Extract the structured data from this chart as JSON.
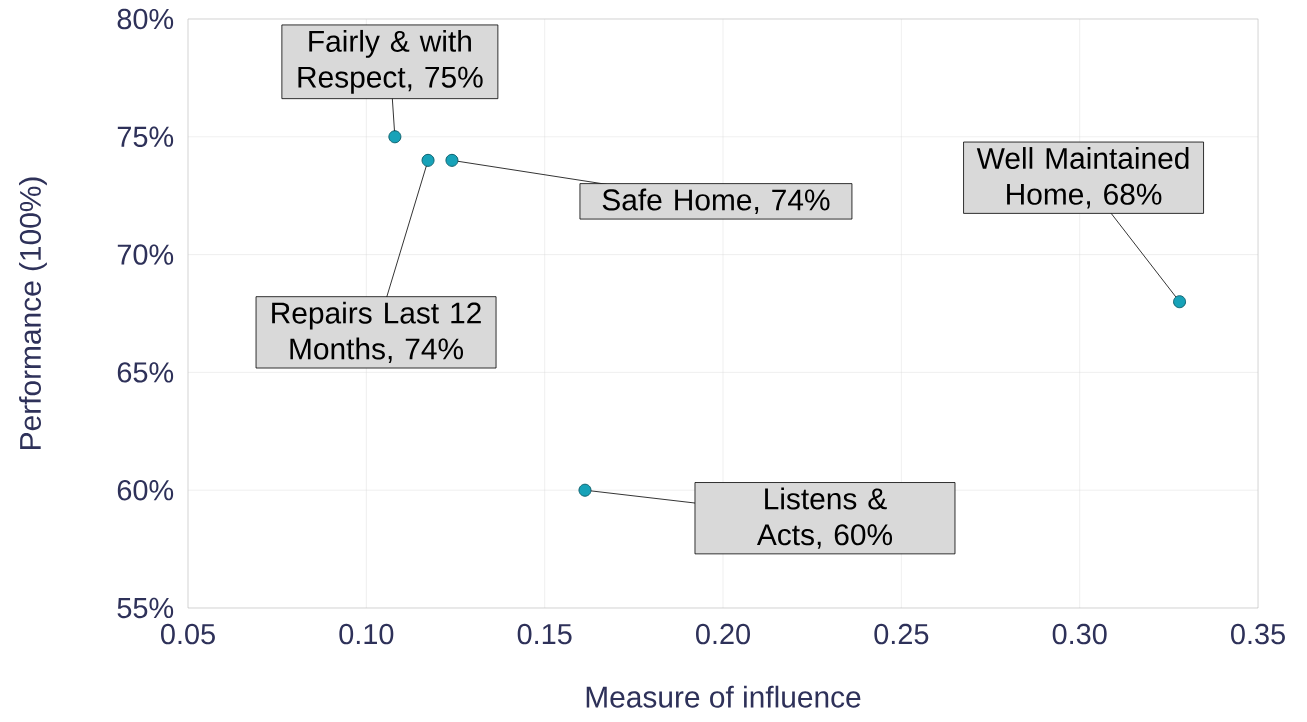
{
  "chart_data": {
    "type": "scatter",
    "xlabel": "Measure of influence",
    "ylabel": "Performance (100%)",
    "x": [
      0.108,
      0.1173,
      0.124,
      0.328,
      0.1613
    ],
    "series": [
      {
        "color": "#17a2b8",
        "values": [
          75,
          74,
          74,
          68,
          60
        ]
      }
    ],
    "marker": "circle",
    "grid": true,
    "xlim": [
      0.05,
      0.35
    ],
    "ylim": [
      55,
      80
    ],
    "xticks": [
      {
        "value": 0.05,
        "label": "0.05"
      },
      {
        "value": 0.1,
        "label": "0.10"
      },
      {
        "value": 0.15,
        "label": "0.15"
      },
      {
        "value": 0.2,
        "label": "0.20"
      },
      {
        "value": 0.25,
        "label": "0.25"
      },
      {
        "value": 0.3,
        "label": "0.30"
      },
      {
        "value": 0.35,
        "label": "0.35"
      }
    ],
    "yticks": [
      {
        "value": 55,
        "label": "55%"
      },
      {
        "value": 60,
        "label": "60%"
      },
      {
        "value": 65,
        "label": "65%"
      },
      {
        "value": 70,
        "label": "70%"
      },
      {
        "value": 75,
        "label": "75%"
      },
      {
        "value": 80,
        "label": "80%"
      }
    ],
    "annotations": [
      {
        "text": "Fairly & with Respect, 75%",
        "x": 0.108,
        "y": 75
      },
      {
        "text": "Repairs Last 12 Months, 74%",
        "x": 0.1173,
        "y": 74
      },
      {
        "text": "Safe Home, 74%",
        "x": 0.124,
        "y": 74
      },
      {
        "text": "Well Maintained Home, 68%",
        "x": 0.328,
        "y": 68
      },
      {
        "text": "Listens & Acts, 60%",
        "x": 0.1613,
        "y": 60
      }
    ]
  }
}
